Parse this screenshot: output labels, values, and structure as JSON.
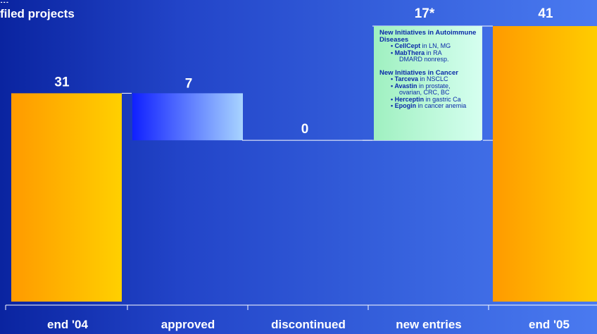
{
  "title": "filed projects",
  "chart_data": {
    "type": "waterfall",
    "categories": [
      "end '04",
      "approved",
      "discontinued",
      "new entries",
      "end '05"
    ],
    "values": [
      31,
      7,
      0,
      17,
      41
    ],
    "value_labels": [
      "31",
      "7",
      "0",
      "17*",
      "41"
    ],
    "steps": [
      {
        "category": "end '04",
        "start": 0,
        "end": 31,
        "kind": "total"
      },
      {
        "category": "approved",
        "start": 24,
        "end": 31,
        "kind": "decrease"
      },
      {
        "category": "discontinued",
        "start": 24,
        "end": 24,
        "kind": "decrease"
      },
      {
        "category": "new entries",
        "start": 24,
        "end": 41,
        "kind": "increase"
      },
      {
        "category": "end '05",
        "start": 0,
        "end": 41,
        "kind": "total"
      }
    ],
    "ylim": [
      0,
      41
    ],
    "colors": {
      "total": [
        "#ff9a00",
        "#ffd000"
      ],
      "approved": [
        "#1020ff",
        "#a8d4ff"
      ],
      "new_entries": [
        "#9ff0c0",
        "#d6fff0"
      ],
      "background": "#2a4dd0"
    }
  },
  "note": {
    "heading1": "New Initiatives in Autoimmune Diseases",
    "items1": [
      {
        "bold": "CellCept",
        "text": " in LN, MG"
      },
      {
        "bold": "MabThera",
        "text": " in RA",
        "cont": "DMARD nonresp."
      }
    ],
    "heading2": "New Initiatives in Cancer",
    "items2": [
      {
        "bold": "Tarceva",
        "text": " in NSCLC"
      },
      {
        "bold": "Avastin",
        "text": " in prostate,",
        "cont": "ovarian, CRC, BC"
      },
      {
        "bold": "Herceptin",
        "text": " in gastric Ca"
      },
      {
        "bold": "Epogin",
        "text": " in cancer anemia"
      }
    ]
  }
}
